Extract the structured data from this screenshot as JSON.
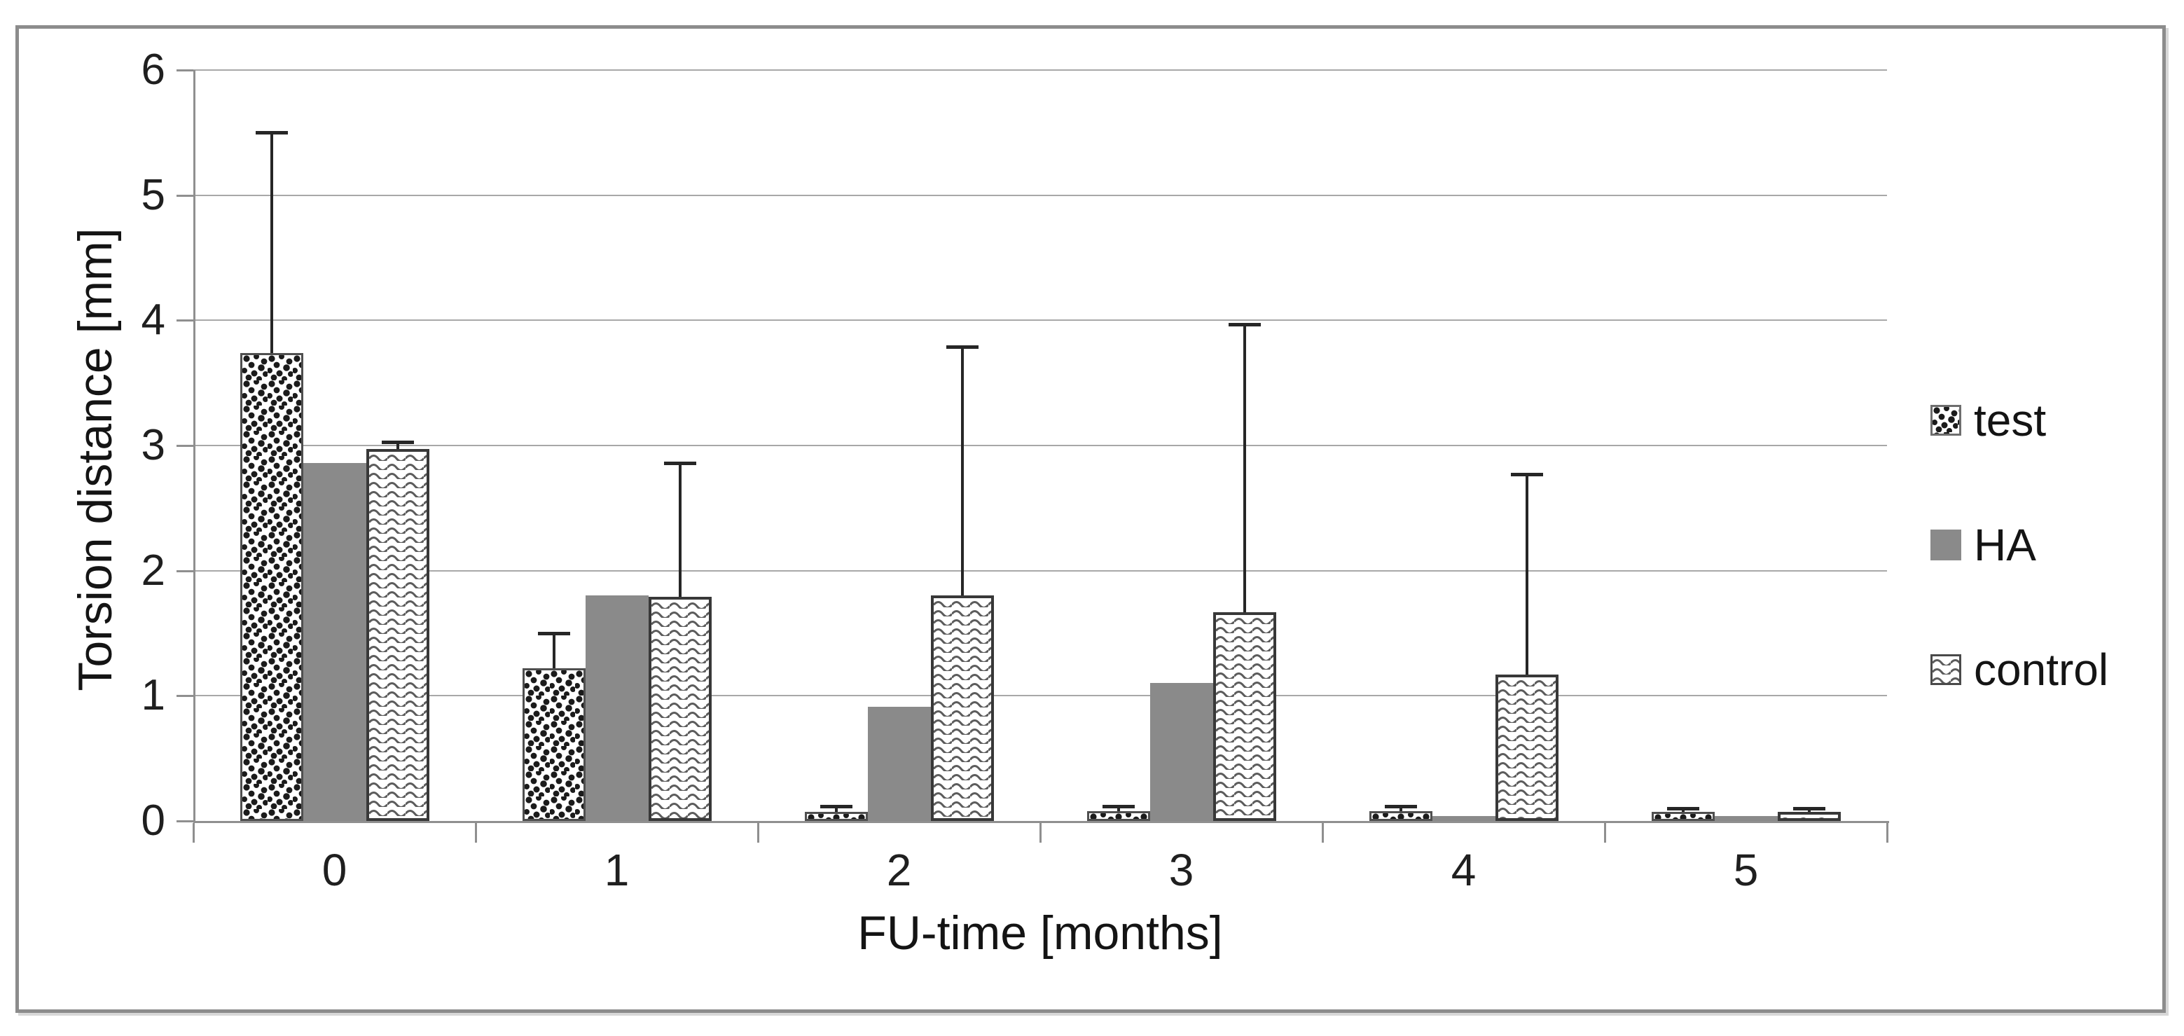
{
  "chart_data": {
    "type": "bar",
    "title": "",
    "xlabel": "FU-time [months]",
    "ylabel": "Torsion distance [mm]",
    "categories": [
      "0",
      "1",
      "2",
      "3",
      "4",
      "5"
    ],
    "ylim": [
      0,
      6
    ],
    "yticks": [
      0,
      1,
      2,
      3,
      4,
      5,
      6
    ],
    "grid": true,
    "legend_position": "right",
    "error_bars": "upper only",
    "series": [
      {
        "name": "test",
        "pattern": "dots",
        "fill": "#ffffff",
        "pattern_color": "#1b1b1b",
        "values": [
          3.74,
          1.22,
          0.07,
          0.08,
          0.08,
          0.07
        ],
        "errors_up": [
          1.76,
          0.28,
          0.05,
          0.04,
          0.04,
          0.03
        ]
      },
      {
        "name": "HA",
        "pattern": "solid",
        "fill": "#8a8a8a",
        "values": [
          2.86,
          1.8,
          0.91,
          1.1,
          0.04,
          0.04
        ],
        "errors_up": null
      },
      {
        "name": "control",
        "pattern": "waves",
        "fill": "#ffffff",
        "pattern_color": "#5c5c5c",
        "values": [
          2.97,
          1.79,
          1.8,
          1.67,
          1.17,
          0.07
        ],
        "errors_up": [
          0.06,
          1.07,
          1.99,
          2.3,
          1.6,
          0.03
        ]
      }
    ],
    "colors": {
      "gridline": "#a8a8a8",
      "axis": "#8f8f8f",
      "error_bar": "#262626",
      "figure_border": "#8c8c8c",
      "text": "#1f1f1f"
    }
  }
}
